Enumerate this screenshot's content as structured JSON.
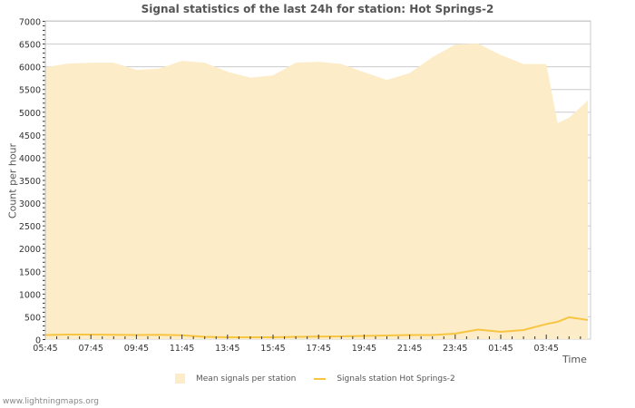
{
  "chart_data": {
    "type": "area",
    "title": "Signal statistics of the last 24h for station: Hot Springs-2",
    "xlabel": "Time",
    "ylabel": "Count per hour",
    "ylim": [
      0,
      7000
    ],
    "yticks": [
      0,
      500,
      1000,
      1500,
      2000,
      2500,
      3000,
      3500,
      4000,
      4500,
      5000,
      5500,
      6000,
      6500,
      7000
    ],
    "xtick_labels": [
      "05:45",
      "07:45",
      "09:45",
      "11:45",
      "13:45",
      "15:45",
      "17:45",
      "19:45",
      "21:45",
      "23:45",
      "01:45",
      "03:45"
    ],
    "grid": true,
    "legend_position": "bottom",
    "x": [
      "05:45",
      "06:45",
      "07:45",
      "08:45",
      "09:45",
      "10:45",
      "11:45",
      "12:45",
      "13:45",
      "14:45",
      "15:45",
      "16:45",
      "17:45",
      "18:45",
      "19:45",
      "20:45",
      "21:45",
      "22:45",
      "23:45",
      "00:45",
      "01:45",
      "02:45",
      "03:45",
      "04:15",
      "04:45",
      "05:15"
    ],
    "series": [
      {
        "name": "Mean signals per station",
        "style": "area",
        "color": "#fdecc8",
        "values": [
          5980,
          6060,
          6080,
          6080,
          5920,
          5950,
          6120,
          6080,
          5880,
          5750,
          5800,
          6080,
          6100,
          6050,
          5870,
          5700,
          5850,
          6200,
          6480,
          6500,
          6250,
          6050,
          6050,
          4750,
          4870,
          5250
        ]
      },
      {
        "name": "Signals station Hot Springs-2",
        "style": "line",
        "color": "#f7c542",
        "values": [
          90,
          100,
          100,
          95,
          90,
          95,
          85,
          50,
          40,
          40,
          40,
          50,
          55,
          60,
          70,
          80,
          90,
          90,
          120,
          210,
          160,
          200,
          330,
          380,
          480,
          420
        ]
      }
    ]
  },
  "legend": {
    "area_label": "Mean signals per station",
    "line_label": "Signals station Hot Springs-2"
  },
  "footer": "www.lightningmaps.org"
}
